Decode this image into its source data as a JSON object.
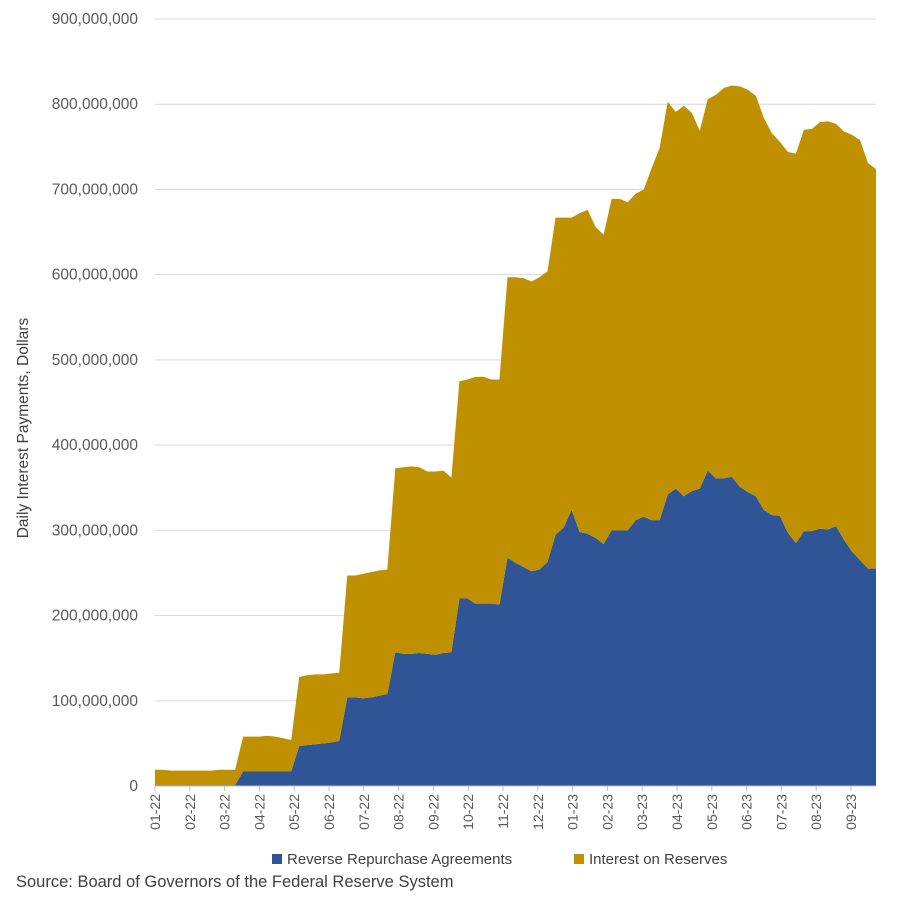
{
  "chart_data": {
    "type": "area",
    "stacked": true,
    "title": "",
    "xlabel": "",
    "ylabel": "Daily Interest Payments, Dollars",
    "value_unit": "millions of dollars",
    "ylim": [
      0,
      900000000
    ],
    "y_ticks": [
      0,
      100000000,
      200000000,
      300000000,
      400000000,
      500000000,
      600000000,
      700000000,
      800000000,
      900000000
    ],
    "y_tick_labels": [
      "0",
      "100,000,000",
      "200,000,000",
      "300,000,000",
      "400,000,000",
      "500,000,000",
      "600,000,000",
      "700,000,000",
      "800,000,000",
      "900,000,000"
    ],
    "x_frequency": "weekly, Jan 2022 - Oct 2023",
    "x_tick_labels": [
      "01-22",
      "02-22",
      "03-22",
      "04-22",
      "05-22",
      "06-22",
      "07-22",
      "08-22",
      "09-22",
      "10-22",
      "11-22",
      "12-22",
      "01-23",
      "02-23",
      "03-23",
      "04-23",
      "05-23",
      "06-23",
      "07-23",
      "08-23",
      "09-23"
    ],
    "grid": true,
    "legend_position": "bottom",
    "series": [
      {
        "name": "Reverse Repurchase Agreements",
        "color": "#2F5597",
        "values": [
          1,
          1,
          1,
          1,
          1,
          1,
          1,
          1,
          1,
          1,
          1,
          17,
          17,
          17,
          17,
          17,
          17,
          17,
          47,
          48,
          49,
          50,
          51,
          53,
          104,
          104,
          103,
          104,
          106,
          108,
          157,
          155,
          155,
          156,
          155,
          154,
          156,
          157,
          220,
          220,
          214,
          214,
          214,
          213,
          268,
          262,
          257,
          252,
          254,
          263,
          295,
          303,
          324,
          298,
          296,
          291,
          284,
          300,
          300,
          300,
          312,
          316,
          312,
          312,
          342,
          349,
          340,
          346,
          349,
          370,
          361,
          361,
          363,
          351,
          345,
          340,
          324,
          318,
          317,
          297,
          285,
          299,
          299,
          302,
          301,
          305,
          289,
          275,
          265,
          255,
          255
        ]
      },
      {
        "name": "Interest on Reserves",
        "color": "#BF9000",
        "values": [
          18,
          18,
          17,
          17,
          17,
          17,
          17,
          17,
          18,
          18,
          18,
          41,
          41,
          41,
          42,
          41,
          39,
          37,
          81,
          82,
          82,
          81,
          81,
          80,
          143,
          143,
          146,
          147,
          147,
          146,
          216,
          219,
          220,
          218,
          214,
          215,
          214,
          205,
          255,
          257,
          266,
          266,
          263,
          264,
          329,
          335,
          339,
          340,
          343,
          341,
          372,
          364,
          343,
          374,
          380,
          365,
          363,
          389,
          389,
          385,
          383,
          384,
          413,
          437,
          461,
          442,
          458,
          444,
          420,
          436,
          450,
          458,
          459,
          470,
          472,
          470,
          460,
          448,
          439,
          447,
          457,
          471,
          472,
          477,
          479,
          472,
          479,
          489,
          493,
          476,
          469
        ]
      }
    ]
  },
  "source": "Source: Board of Governors of the Federal Reserve System"
}
